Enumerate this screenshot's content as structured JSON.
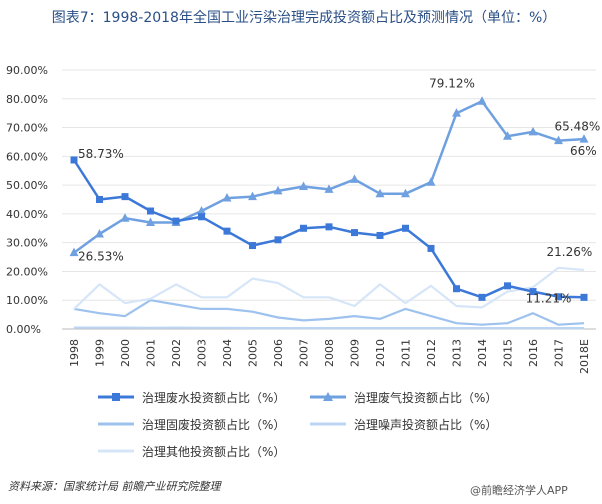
{
  "title": "图表7：1998-2018年全国工业污染治理完成投资额占比及预测情况（单位：%）",
  "source": "资料来源：国家统计局 前瞻产业研究院整理",
  "watermark": "@前瞻经济学人APP",
  "chart_data": {
    "type": "line",
    "title": "图表7：1998-2018年全国工业污染治理完成投资额占比及预测情况（单位：%）",
    "categories": [
      "1998",
      "1999",
      "2000",
      "2001",
      "2002",
      "2003",
      "2004",
      "2005",
      "2006",
      "2007",
      "2008",
      "2009",
      "2010",
      "2011",
      "2012",
      "2013",
      "2014",
      "2015",
      "2016",
      "2017",
      "2018E"
    ],
    "yticks": [
      "0.00%",
      "10.00%",
      "20.00%",
      "30.00%",
      "40.00%",
      "50.00%",
      "60.00%",
      "70.00%",
      "80.00%",
      "90.00%"
    ],
    "ylim": [
      0,
      90
    ],
    "grid": true,
    "legend_position": "bottom",
    "series": [
      {
        "name": "治理废水投资额占比（%）",
        "color": "#3c78d8",
        "marker": "square",
        "values": [
          58.73,
          45,
          46,
          41,
          37.5,
          39,
          34,
          29,
          31,
          35,
          35.5,
          33.5,
          32.5,
          35,
          28,
          14,
          11,
          15,
          13,
          11.21,
          11
        ]
      },
      {
        "name": "治理废气投资额占比（%）",
        "color": "#6fa0e0",
        "marker": "triangle",
        "values": [
          26.53,
          33,
          38.5,
          37,
          37,
          41,
          45.5,
          46,
          48,
          49.5,
          48.5,
          52,
          47,
          47,
          51,
          75,
          79.12,
          67,
          68.5,
          65.48,
          66
        ]
      },
      {
        "name": "治理固废投资额占比（%）",
        "color": "#9ec2ee",
        "marker": "none",
        "values": [
          7,
          5.5,
          4.5,
          10,
          8.5,
          7,
          7,
          6,
          4,
          3,
          3.5,
          4.5,
          3.5,
          7,
          4.5,
          2,
          1.5,
          2,
          5.5,
          1.5,
          2
        ]
      },
      {
        "name": "治理噪声投资额占比（%）",
        "color": "#bcd5f3",
        "marker": "none",
        "values": [
          0.5,
          0.5,
          0.5,
          0.4,
          0.5,
          0.4,
          0.4,
          0.3,
          0.3,
          0.3,
          0.3,
          0.3,
          0.3,
          0.3,
          0.3,
          0.3,
          0.3,
          0.3,
          0.3,
          0.3,
          0.3
        ]
      },
      {
        "name": "治理其他投资额占比（%）",
        "color": "#d6e6f8",
        "marker": "none",
        "values": [
          7,
          15.5,
          9,
          10.5,
          15.5,
          11,
          11,
          17.5,
          16,
          11,
          11,
          8,
          15.5,
          9,
          15,
          8,
          7.5,
          13,
          14.5,
          21.26,
          20.5
        ]
      }
    ],
    "annotations": [
      {
        "text": "58.73%",
        "series": 0,
        "index": 0
      },
      {
        "text": "26.53%",
        "series": 1,
        "index": 0
      },
      {
        "text": "79.12%",
        "series": 1,
        "index": 16
      },
      {
        "text": "65.48%",
        "series": 1,
        "index": 19
      },
      {
        "text": "66%",
        "series": 1,
        "index": 20
      },
      {
        "text": "21.26%",
        "series": 4,
        "index": 19
      },
      {
        "text": "11.21%",
        "series": 0,
        "index": 19
      }
    ]
  }
}
